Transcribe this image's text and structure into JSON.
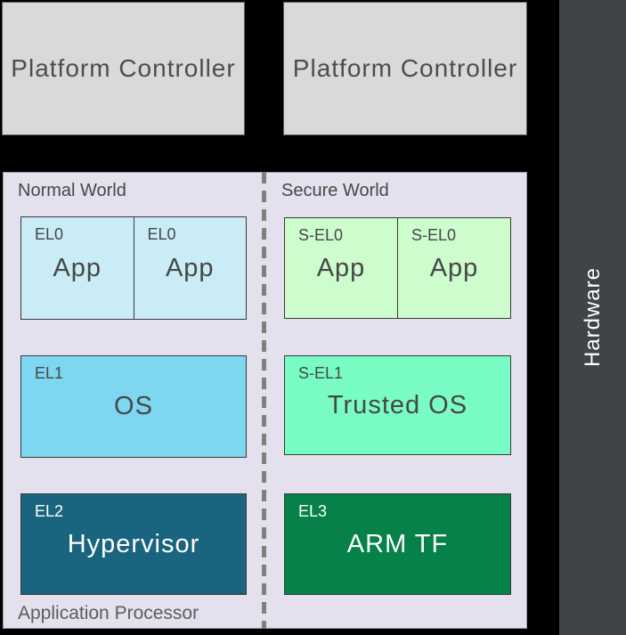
{
  "colors": {
    "background": "#000000",
    "platform_box": "#d9d9d9",
    "hardware_bar": "#3f4447",
    "panel": "#e4e0ee",
    "normal_app": "#c9ecf7",
    "normal_os": "#7dd7f0",
    "hypervisor": "#19647e",
    "secure_app": "#cdfccd",
    "secure_os": "#79fcc3",
    "firmware": "#068148",
    "divider": "#7f7f7f"
  },
  "top": {
    "platform_controllers": [
      "Platform Controller",
      "Platform Controller"
    ]
  },
  "hardware": {
    "label": "Hardware"
  },
  "processor": {
    "label": "Application Processor",
    "normal_world": {
      "label": "Normal World",
      "apps": [
        {
          "level": "EL0",
          "name": "App"
        },
        {
          "level": "EL0",
          "name": "App"
        }
      ],
      "os": {
        "level": "EL1",
        "name": "OS"
      },
      "hypervisor": {
        "level": "EL2",
        "name": "Hypervisor"
      }
    },
    "secure_world": {
      "label": "Secure World",
      "apps": [
        {
          "level": "S-EL0",
          "name": "App"
        },
        {
          "level": "S-EL0",
          "name": "App"
        }
      ],
      "trusted_os": {
        "level": "S-EL1",
        "name": "Trusted OS"
      },
      "firmware": {
        "level": "EL3",
        "name": "ARM TF"
      }
    }
  }
}
